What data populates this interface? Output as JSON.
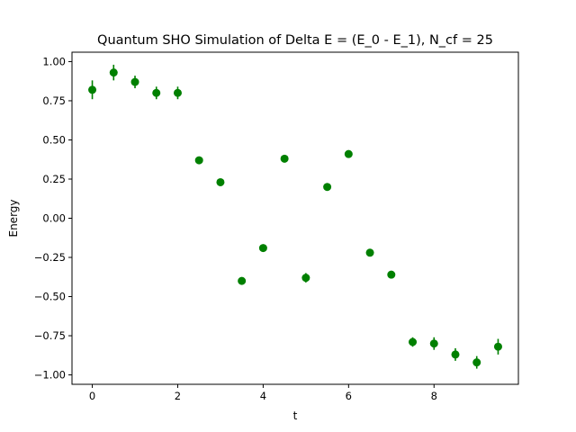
{
  "chart_data": {
    "type": "scatter",
    "title": "Quantum SHO Simulation of Delta E = (E_0 - E_1), N_cf = 25",
    "xlabel": "t",
    "ylabel": "Energy",
    "xlim": [
      -0.475,
      9.975
    ],
    "ylim": [
      -1.06,
      1.06
    ],
    "xticks": [
      0,
      2,
      4,
      6,
      8
    ],
    "xtick_labels": [
      "0",
      "2",
      "4",
      "6",
      "8"
    ],
    "yticks": [
      -1.0,
      -0.75,
      -0.5,
      -0.25,
      0.0,
      0.25,
      0.5,
      0.75,
      1.0
    ],
    "ytick_labels": [
      "−1.00",
      "−0.75",
      "−0.50",
      "−0.25",
      "0.00",
      "0.25",
      "0.50",
      "0.75",
      "1.00"
    ],
    "grid": false,
    "marker_color": "#008000",
    "series": [
      {
        "x": [
          0,
          0.5,
          1,
          1.5,
          2,
          2.5,
          3,
          3.5,
          4,
          4.5,
          5,
          5.5,
          6,
          6.5,
          7,
          7.5,
          8,
          8.5,
          9,
          9.5
        ],
        "y": [
          0.82,
          0.93,
          0.87,
          0.8,
          0.8,
          0.37,
          0.23,
          -0.4,
          -0.19,
          0.38,
          -0.38,
          0.2,
          0.41,
          -0.22,
          -0.36,
          -0.79,
          -0.8,
          -0.87,
          -0.92,
          -0.82
        ],
        "err": [
          0.06,
          0.05,
          0.04,
          0.04,
          0.04,
          0.02,
          0.02,
          0.02,
          0.02,
          0.02,
          0.03,
          0.02,
          0.02,
          0.02,
          0.02,
          0.03,
          0.04,
          0.04,
          0.04,
          0.05
        ]
      }
    ]
  }
}
